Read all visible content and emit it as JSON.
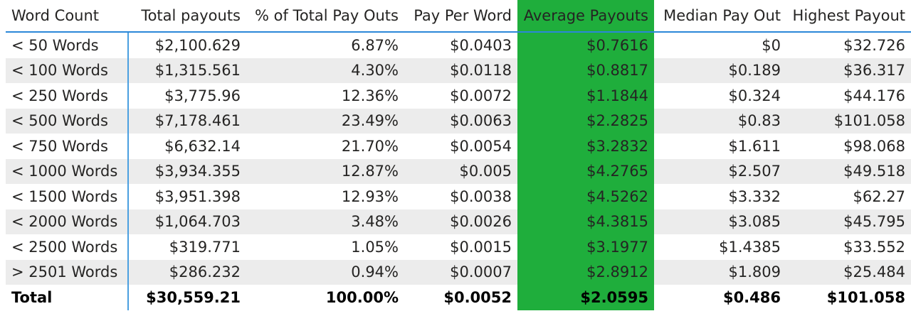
{
  "chart_data": {
    "type": "table",
    "highlight_color": "#1fae3c",
    "header_rule_color": "#2b88d8",
    "alt_row_color": "#ececec",
    "highlighted_column": "Average Payouts",
    "columns": [
      "Word Count",
      "Total payouts",
      "% of Total Pay Outs",
      "Pay Per Word",
      "Average Payouts",
      "Median Pay Out",
      "Highest Payout"
    ],
    "rows": [
      [
        "< 50 Words",
        "$2,100.629",
        "6.87%",
        "$0.0403",
        "$0.7616",
        "$0",
        "$32.726"
      ],
      [
        "< 100 Words",
        "$1,315.561",
        "4.30%",
        "$0.0118",
        "$0.8817",
        "$0.189",
        "$36.317"
      ],
      [
        "< 250 Words",
        "$3,775.96",
        "12.36%",
        "$0.0072",
        "$1.1844",
        "$0.324",
        "$44.176"
      ],
      [
        "< 500 Words",
        "$7,178.461",
        "23.49%",
        "$0.0063",
        "$2.2825",
        "$0.83",
        "$101.058"
      ],
      [
        "< 750 Words",
        "$6,632.14",
        "21.70%",
        "$0.0054",
        "$3.2832",
        "$1.611",
        "$98.068"
      ],
      [
        "< 1000 Words",
        "$3,934.355",
        "12.87%",
        "$0.005",
        "$4.2765",
        "$2.507",
        "$49.518"
      ],
      [
        "< 1500 Words",
        "$3,951.398",
        "12.93%",
        "$0.0038",
        "$4.5262",
        "$3.332",
        "$62.27"
      ],
      [
        "< 2000 Words",
        "$1,064.703",
        "3.48%",
        "$0.0026",
        "$4.3815",
        "$3.085",
        "$45.795"
      ],
      [
        "< 2500 Words",
        "$319.771",
        "1.05%",
        "$0.0015",
        "$3.1977",
        "$1.4385",
        "$33.552"
      ],
      [
        "> 2501 Words",
        "$286.232",
        "0.94%",
        "$0.0007",
        "$2.8912",
        "$1.809",
        "$25.484"
      ]
    ],
    "total": [
      "Total",
      "$30,559.21",
      "100.00%",
      "$0.0052",
      "$2.0595",
      "$0.486",
      "$101.058"
    ]
  }
}
